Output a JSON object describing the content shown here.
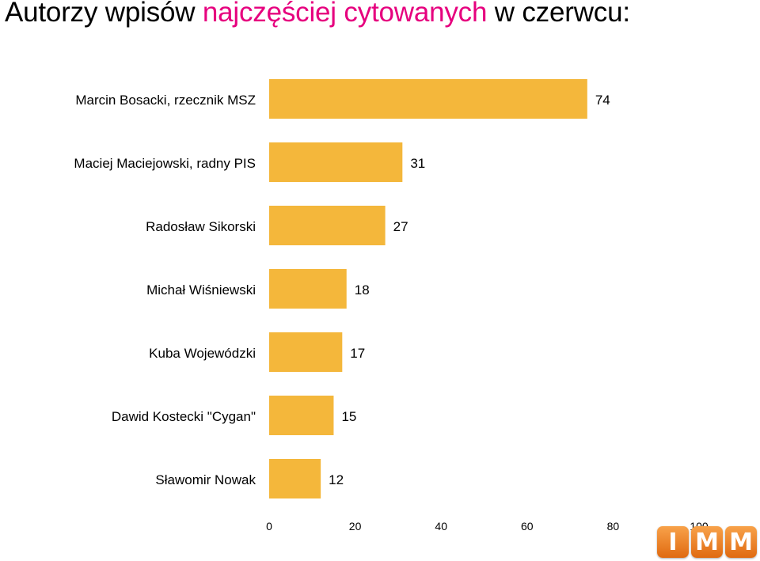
{
  "title": {
    "part1": "Autorzy wpisów ",
    "part2": "najczęściej cytowanych",
    "part3": " w czerwcu:"
  },
  "colors": {
    "bar": "#F4B73B",
    "title_accent": "#E6007E",
    "logo": "#F08020"
  },
  "chart_data": {
    "type": "bar",
    "orientation": "horizontal",
    "categories": [
      "Marcin Bosacki, rzecznik MSZ",
      "Maciej Maciejowski, radny PIS",
      "Radosław Sikorski",
      "Michał Wiśniewski",
      "Kuba Wojewódzki",
      "Dawid Kostecki \"Cygan\"",
      "Sławomir Nowak"
    ],
    "values": [
      74,
      31,
      27,
      18,
      17,
      15,
      12
    ],
    "xlim": [
      0,
      100
    ],
    "xticks": [
      0,
      20,
      40,
      60,
      80,
      100
    ],
    "grid": false,
    "data_labels": true
  },
  "logo": {
    "letters": [
      "I",
      "M",
      "M"
    ]
  }
}
